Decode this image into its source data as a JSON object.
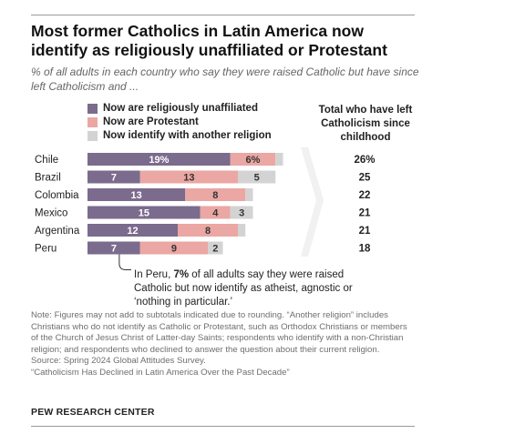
{
  "title": "Most former Catholics in Latin America now identify as religiously unaffiliated or Protestant",
  "subtitle": "% of all adults in each country who say they were raised Catholic but have since left Catholicism and ...",
  "legend": [
    {
      "label": "Now are religiously unaffiliated",
      "color": "#7b6b8d"
    },
    {
      "label": "Now are Protestant",
      "color": "#eaa7a3"
    },
    {
      "label": "Now identify with another religion",
      "color": "#d3d3d3"
    }
  ],
  "total_header": "Total who have left Catholicism since childhood",
  "chart_data": {
    "type": "bar",
    "orientation": "horizontal",
    "stacked": true,
    "categories": [
      "Chile",
      "Brazil",
      "Colombia",
      "Mexico",
      "Argentina",
      "Peru"
    ],
    "series": [
      {
        "name": "Now are religiously unaffiliated",
        "color": "#7b6b8d",
        "values": [
          19,
          7,
          13,
          15,
          12,
          7
        ],
        "labels": [
          "19%",
          "7",
          "13",
          "15",
          "12",
          "7"
        ]
      },
      {
        "name": "Now are Protestant",
        "color": "#eaa7a3",
        "values": [
          6,
          13,
          8,
          4,
          8,
          9
        ],
        "labels": [
          "6%",
          "13",
          "8",
          "4",
          "8",
          "9"
        ]
      },
      {
        "name": "Now identify with another religion",
        "color": "#d3d3d3",
        "values": [
          1,
          5,
          1,
          3,
          1,
          2
        ],
        "labels": [
          "",
          "5",
          "",
          "3",
          "",
          "2"
        ]
      }
    ],
    "totals": [
      "26%",
      "25",
      "22",
      "21",
      "21",
      "18"
    ]
  },
  "callout": {
    "pre": "In Peru, ",
    "bold": "7%",
    "post": " of all adults say they were raised Catholic but now identify as atheist, agnostic or ‘nothing in particular.’"
  },
  "note_lines": [
    "Note: Figures may not add to subtotals indicated due to rounding. “Another religion” includes Christians who do not identify as Catholic or Protestant, such as Orthodox Christians or members of the Church of Jesus Christ of Latter-day Saints; respondents who identify with a non-Christian religion; and respondents who declined to answer the question about their current religion.",
    "Source: Spring 2024 Global Attitudes Survey.",
    "“Catholicism Has Declined in Latin America Over the Past Decade”"
  ],
  "brand": "PEW RESEARCH CENTER"
}
